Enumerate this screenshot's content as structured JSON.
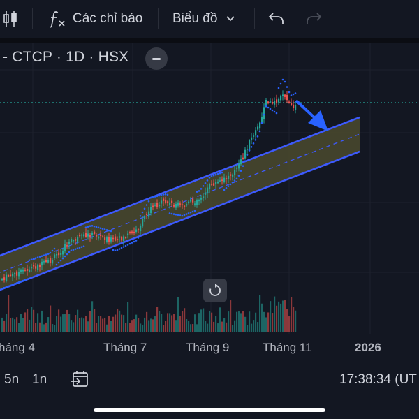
{
  "toolbar": {
    "indicators_label": "Các chỉ báo",
    "chart_type_label": "Biểu đồ"
  },
  "symbol": {
    "text": "- CTCP · 1D · HSX"
  },
  "colors": {
    "background": "#131722",
    "up_candle": "#26a69a",
    "down_candle": "#ef5350",
    "channel_line": "#3d5afe",
    "channel_fill": "#4b4a2e",
    "psar_dots": "#2962ff",
    "arrow": "#2962ff",
    "price_line": "#26a69a"
  },
  "xaxis": {
    "labels": [
      "háng 4",
      "Tháng 7",
      "Tháng 9",
      "Tháng 11",
      "2026"
    ]
  },
  "bottombar": {
    "range_5y": "5n",
    "range_1y": "1n",
    "time": "17:38:34 (UT"
  }
}
